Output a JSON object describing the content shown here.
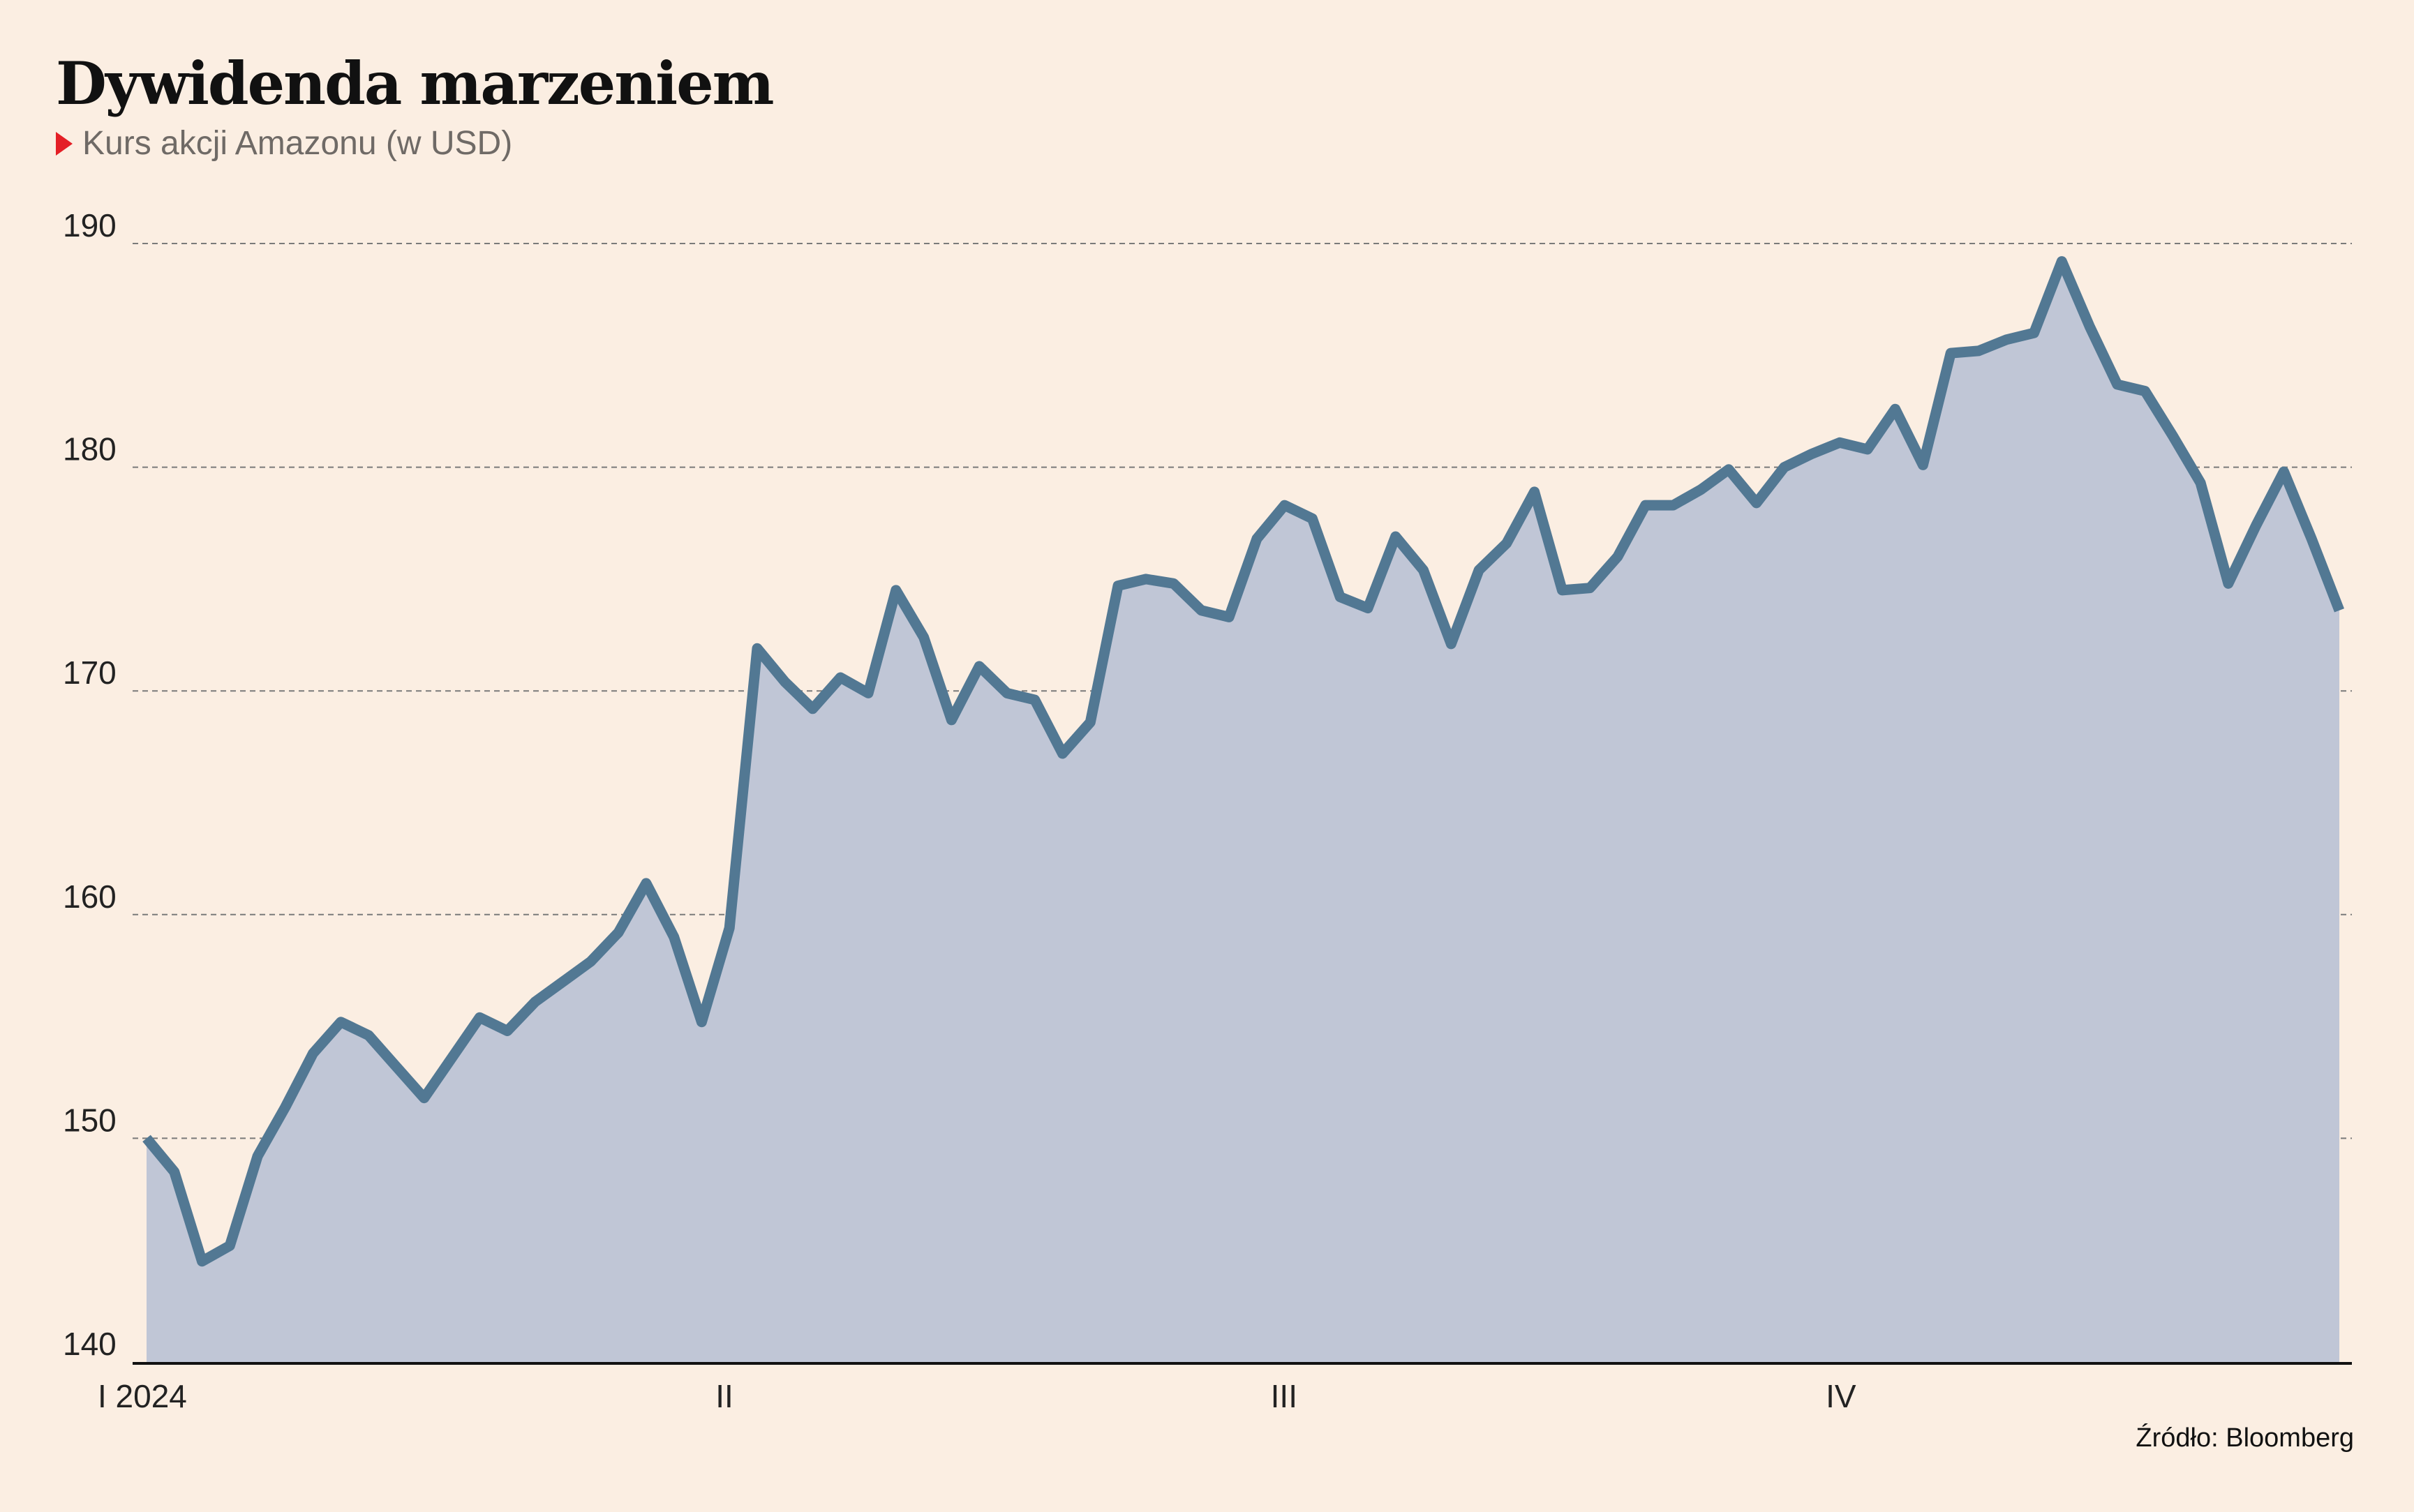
{
  "title": "Dywidenda marzeniem",
  "subtitle": "Kurs akcji Amazonu (w USD)",
  "source": "Źródło: Bloomberg",
  "colors": {
    "background": "#fbeee2",
    "line": "#527893",
    "area": "#c0c6d6",
    "marker": "#e41f26",
    "grid": "#7a7a7a"
  },
  "chart_data": {
    "type": "area",
    "title": "Dywidenda marzeniem",
    "subtitle": "Kurs akcji Amazonu (w USD)",
    "ylim": [
      140,
      190
    ],
    "yticks": [
      140,
      150,
      160,
      170,
      180,
      190
    ],
    "ytick_labels": [
      "140",
      "150",
      "160",
      "170",
      "180",
      "190"
    ],
    "grid": "horizontal dashed",
    "xlim": [
      0,
      79
    ],
    "xtick_positions": [
      0,
      21,
      41,
      61
    ],
    "xtick_labels": [
      "I 2024",
      "II",
      "III",
      "IV"
    ],
    "series": [
      {
        "values": [
          150.0,
          148.5,
          144.5,
          145.2,
          149.2,
          151.4,
          153.8,
          155.2,
          154.6,
          153.2,
          151.8,
          153.6,
          155.4,
          154.8,
          156.1,
          157.0,
          157.9,
          159.2,
          161.4,
          159.0,
          155.2,
          159.4,
          171.9,
          170.4,
          169.2,
          170.6,
          169.9,
          174.5,
          172.4,
          168.7,
          171.1,
          169.9,
          169.6,
          167.2,
          168.6,
          174.7,
          175.0,
          174.8,
          173.6,
          173.3,
          176.8,
          178.3,
          177.7,
          174.2,
          173.7,
          176.9,
          175.4,
          172.1,
          175.4,
          176.6,
          178.9,
          174.5,
          174.6,
          176.0,
          178.3,
          178.3,
          179.0,
          179.9,
          178.4,
          180.0,
          180.6,
          181.1,
          180.8,
          182.6,
          180.1,
          185.1,
          185.2,
          185.7,
          186.0,
          189.2,
          186.3,
          183.7,
          183.4,
          181.4,
          179.3,
          174.8,
          177.4,
          179.8,
          176.8,
          173.6
        ]
      }
    ]
  }
}
